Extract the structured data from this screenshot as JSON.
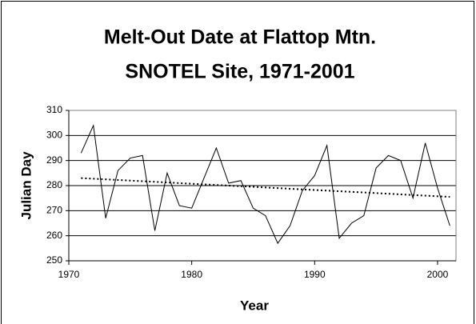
{
  "chart_data": {
    "type": "line",
    "title": [
      "Melt-Out Date at Flattop Mtn.",
      "SNOTEL Site, 1971-2001"
    ],
    "x_label": "Year",
    "y_label": "Julian Day",
    "x": [
      1971,
      1972,
      1973,
      1974,
      1975,
      1976,
      1977,
      1978,
      1979,
      1980,
      1981,
      1982,
      1983,
      1984,
      1985,
      1986,
      1987,
      1988,
      1989,
      1990,
      1991,
      1992,
      1993,
      1994,
      1995,
      1996,
      1997,
      1998,
      1999,
      2000,
      2001
    ],
    "values": [
      293,
      304,
      267,
      286,
      291,
      292,
      262,
      285,
      272,
      271,
      283,
      295,
      281,
      282,
      271,
      268,
      257,
      264,
      278,
      284,
      296,
      259,
      265,
      268,
      287,
      292,
      290,
      275,
      297,
      279,
      264
    ],
    "color": "#000000",
    "trend": {
      "x": [
        1971,
        2001
      ],
      "values": [
        283,
        275.5
      ],
      "style": "dotted"
    },
    "xlim": [
      1970,
      2001.5
    ],
    "xticks": [
      1970,
      1980,
      1990,
      2000
    ],
    "ylim": [
      250,
      310
    ],
    "yticks": [
      250,
      260,
      270,
      280,
      290,
      300,
      310
    ],
    "grid": true
  }
}
